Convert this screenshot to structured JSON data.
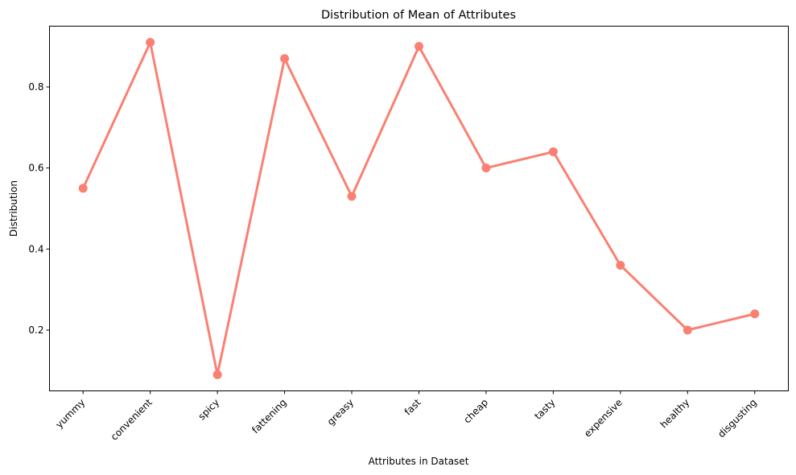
{
  "chart_data": {
    "type": "line",
    "title": "Distribution of Mean of Attributes",
    "xlabel": "Attributes in Dataset",
    "ylabel": "Distribution",
    "categories": [
      "yummy",
      "convenient",
      "spicy",
      "fattening",
      "greasy",
      "fast",
      "cheap",
      "tasty",
      "expensive",
      "healthy",
      "disgusting"
    ],
    "values": [
      0.55,
      0.91,
      0.09,
      0.87,
      0.53,
      0.9,
      0.6,
      0.64,
      0.36,
      0.2,
      0.24
    ],
    "ylim": [
      0.05,
      0.95
    ],
    "yticks": [
      "0.2",
      "0.4",
      "0.6",
      "0.8"
    ],
    "grid": false,
    "legend": "none",
    "color": "#fa8072"
  }
}
